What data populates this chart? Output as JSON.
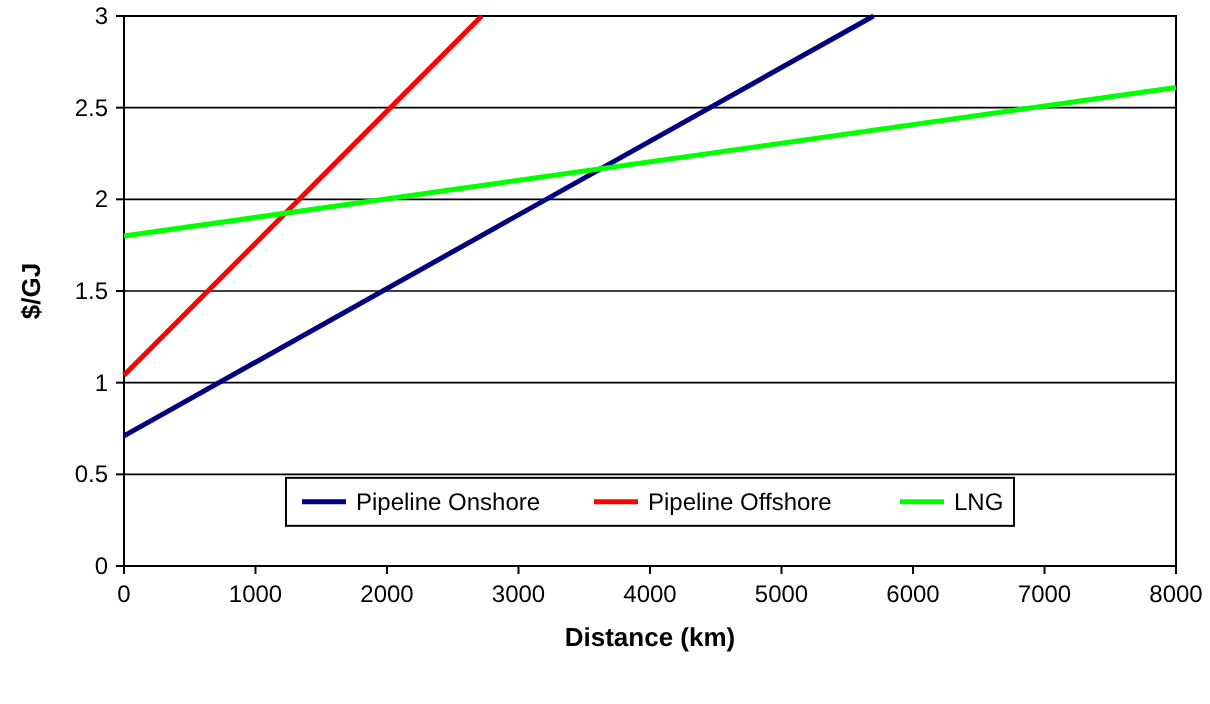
{
  "chart_data": {
    "type": "line",
    "xlabel": "Distance (km)",
    "ylabel": "$/GJ",
    "xlim": [
      0,
      8000
    ],
    "xticks": [
      0,
      1000,
      2000,
      3000,
      4000,
      5000,
      6000,
      7000,
      8000
    ],
    "ylim": [
      0,
      3
    ],
    "yticks": [
      0,
      0.5,
      1,
      1.5,
      2,
      2.5,
      3
    ],
    "grid": "y",
    "legend": "bottom",
    "marker": "none",
    "line_style": "solid",
    "series": [
      {
        "name": "Pipeline Onshore",
        "color": "#000080",
        "x": [
          0,
          5700
        ],
        "values": [
          0.71,
          3
        ]
      },
      {
        "name": "Pipeline Offshore",
        "color": "#ff0000",
        "x": [
          0,
          2720
        ],
        "values": [
          1.04,
          3
        ]
      },
      {
        "name": "LNG",
        "color": "#00ff00",
        "x": [
          0,
          8000
        ],
        "values": [
          1.8,
          2.61
        ]
      }
    ]
  }
}
